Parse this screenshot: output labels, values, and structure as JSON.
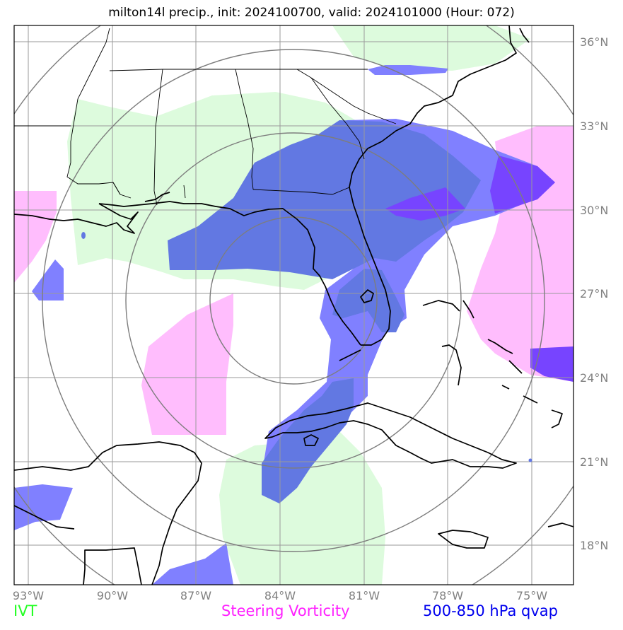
{
  "title": "milton14l precip., init: 2024100700, valid: 2024101000 (Hour: 072)",
  "lon_labels": [
    "93°W",
    "90°W",
    "87°W",
    "84°W",
    "81°W",
    "78°W",
    "75°W"
  ],
  "lat_labels": [
    "36°N",
    "33°N",
    "30°N",
    "27°N",
    "24°N",
    "21°N",
    "18°N"
  ],
  "legend": {
    "ivt": {
      "label": "IVT",
      "color": "#22ff22"
    },
    "vorticity": {
      "label": "Steering Vorticity",
      "color": "#ff22ff"
    },
    "qvap": {
      "label": "500-850 hPa qvap",
      "color": "#0000ee"
    }
  },
  "colors": {
    "ivt_fill": "#ddfbdd",
    "vort_fill": "#ffbdfd",
    "qvap_light": "#8080ff",
    "qvap_mid": "#6278e2",
    "qvap_dark": "#7744ff",
    "grid": "#9a9a9a",
    "rings": "#7d7d7d",
    "coast": "#000000"
  },
  "map_extent": {
    "lon": [
      -93.0,
      -73.0
    ],
    "lat": [
      16.5,
      36.5
    ]
  }
}
